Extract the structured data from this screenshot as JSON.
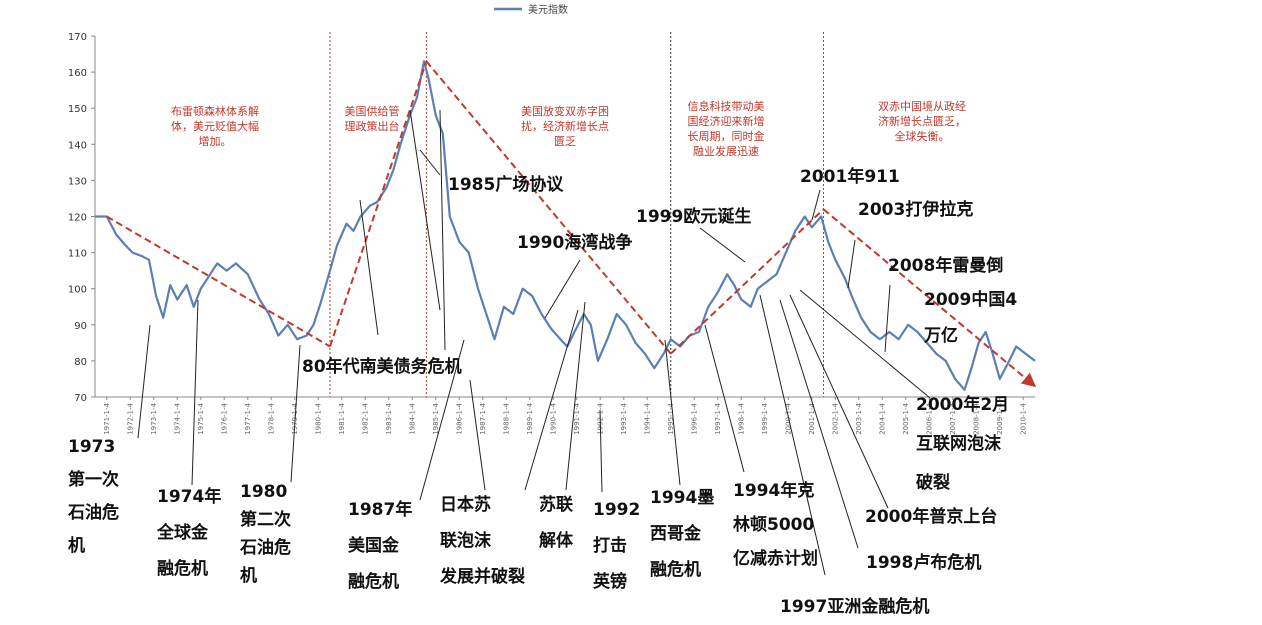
{
  "chart_data": {
    "type": "line",
    "legend": "美元指数",
    "legend_position": "top",
    "ylim": [
      70,
      170
    ],
    "yticks": [
      70,
      80,
      90,
      100,
      110,
      120,
      130,
      140,
      150,
      160,
      170
    ],
    "xlim": [
      1971,
      2011
    ],
    "xticks": [
      "1971-1-4",
      "1972-1-4",
      "1973-1-4",
      "1974-1-4",
      "1975-1-4",
      "1976-1-4",
      "1977-1-4",
      "1978-1-4",
      "1979-1-4",
      "1980-1-4",
      "1981-1-4",
      "1982-1-4",
      "1983-1-4",
      "1984-1-4",
      "1985-1-4",
      "1986-1-4",
      "1987-1-4",
      "1988-1-4",
      "1989-1-4",
      "1990-1-4",
      "1991-1-4",
      "1992-1-4",
      "1993-1-4",
      "1994-1-4",
      "1995-1-4",
      "1996-1-4",
      "1997-1-4",
      "1998-1-4",
      "1999-1-4",
      "2000-1-4",
      "2001-1-4",
      "2002-1-4",
      "2003-1-4",
      "2004-1-4",
      "2005-1-4",
      "2006-1-4",
      "2007-1-4",
      "2008-1-4",
      "2009-1-4",
      "2010-1-4"
    ],
    "x": [
      1971.0,
      1971.5,
      1971.9,
      1972.3,
      1972.6,
      1973.0,
      1973.3,
      1973.6,
      1973.9,
      1974.2,
      1974.5,
      1974.9,
      1975.2,
      1975.5,
      1975.9,
      1976.2,
      1976.6,
      1977.0,
      1977.5,
      1978.0,
      1978.4,
      1978.8,
      1979.2,
      1979.6,
      1980.0,
      1980.3,
      1980.6,
      1981.0,
      1981.3,
      1981.7,
      1982.0,
      1982.3,
      1982.7,
      1983.0,
      1983.4,
      1983.7,
      1984.0,
      1984.4,
      1984.7,
      1985.0,
      1985.2,
      1985.5,
      1985.8,
      1986.1,
      1986.5,
      1986.9,
      1987.3,
      1987.7,
      1988.0,
      1988.4,
      1988.8,
      1989.2,
      1989.6,
      1990.0,
      1990.4,
      1990.8,
      1991.1,
      1991.4,
      1991.8,
      1992.1,
      1992.4,
      1992.8,
      1993.2,
      1993.6,
      1994.0,
      1994.4,
      1994.8,
      1995.2,
      1995.5,
      1995.9,
      1996.3,
      1996.7,
      1997.1,
      1997.5,
      1997.9,
      1998.2,
      1998.5,
      1998.9,
      1999.2,
      1999.6,
      2000.0,
      2000.4,
      2000.8,
      2001.2,
      2001.5,
      2001.9,
      2002.2,
      2002.5,
      2002.9,
      2003.2,
      2003.6,
      2004.0,
      2004.4,
      2004.8,
      2005.2,
      2005.6,
      2006.0,
      2006.4,
      2006.8,
      2007.2,
      2007.6,
      2008.0,
      2008.3,
      2008.6,
      2008.9,
      2009.2,
      2009.5,
      2009.9,
      2010.2,
      2010.6,
      2011.0
    ],
    "values": [
      120,
      120,
      115,
      112,
      110,
      109,
      108,
      98,
      92,
      101,
      97,
      101,
      95,
      100,
      104,
      107,
      105,
      107,
      104,
      97,
      93,
      87,
      90,
      86,
      87,
      90,
      96,
      105,
      112,
      118,
      116,
      120,
      123,
      124,
      128,
      133,
      140,
      148,
      153,
      163,
      158,
      148,
      143,
      120,
      113,
      110,
      100,
      92,
      86,
      95,
      93,
      100,
      98,
      93,
      89,
      86,
      84,
      88,
      93,
      90,
      80,
      86,
      93,
      90,
      85,
      82,
      78,
      82,
      86,
      84,
      87,
      88,
      95,
      99,
      104,
      101,
      97,
      95,
      100,
      102,
      104,
      110,
      116,
      120,
      117,
      120,
      113,
      108,
      103,
      98,
      92,
      88,
      86,
      88,
      86,
      90,
      88,
      85,
      82,
      80,
      75,
      72,
      78,
      85,
      88,
      82,
      75,
      80,
      84,
      82,
      80
    ],
    "trend_lines": [
      {
        "x": [
          1971.5,
          1981.0
        ],
        "y": [
          120,
          84
        ]
      },
      {
        "x": [
          1981.0,
          1985.1
        ],
        "y": [
          84,
          163
        ]
      },
      {
        "x": [
          1985.1,
          1995.5
        ],
        "y": [
          163,
          82
        ]
      },
      {
        "x": [
          1995.5,
          2002.0
        ],
        "y": [
          82,
          122
        ]
      },
      {
        "x": [
          2002.0,
          2011.0
        ],
        "y": [
          122,
          73
        ]
      }
    ],
    "phase_dividers": [
      1981.0,
      1985.1,
      1995.5,
      2002.0
    ],
    "phases": [
      {
        "lines": [
          "布雷顿森林体系解",
          "体，美元贬值大幅",
          "增加。"
        ]
      },
      {
        "lines": [
          "美国供给管",
          "理政策出台"
        ]
      },
      {
        "lines": [
          "美国放变双赤字困",
          "扰，经济新增长点",
          "匮乏"
        ]
      },
      {
        "lines": [
          "信息科技带动美",
          "国经济迎来新增",
          "长周期，同时金",
          "融业发展迅速"
        ]
      },
      {
        "lines": [
          "双赤中国境从政经",
          "济新增长点匮乏，",
          "全球失衡。"
        ]
      }
    ],
    "annotations": [
      {
        "lines": [
          "1985广场协议"
        ]
      },
      {
        "lines": [
          "1990海湾战争"
        ]
      },
      {
        "lines": [
          "1999欧元诞生"
        ]
      },
      {
        "lines": [
          "2001年911"
        ]
      },
      {
        "lines": [
          "2003打伊拉克"
        ]
      },
      {
        "lines": [
          "2008年雷曼倒"
        ]
      },
      {
        "lines": [
          "2009中国4",
          "万亿"
        ]
      },
      {
        "lines": [
          "80年代南美债务危机"
        ]
      },
      {
        "lines": [
          "1973",
          "第一次",
          "石油危",
          "机"
        ]
      },
      {
        "lines": [
          "1974年",
          "全球金",
          "融危机"
        ]
      },
      {
        "lines": [
          "1980",
          "第二次",
          "石油危",
          "机"
        ]
      },
      {
        "lines": [
          "1987年",
          "美国金",
          "融危机"
        ]
      },
      {
        "lines": [
          "日本苏",
          "联泡沫",
          "发展并破裂"
        ]
      },
      {
        "lines": [
          "苏联",
          "解体"
        ]
      },
      {
        "lines": [
          "1992",
          "打击",
          "英镑"
        ]
      },
      {
        "lines": [
          "1994墨",
          "西哥金",
          "融危机"
        ]
      },
      {
        "lines": [
          "1994年克",
          "林顿5000",
          "亿减赤计划"
        ]
      },
      {
        "lines": [
          "1997亚洲金融危机"
        ]
      },
      {
        "lines": [
          "1998卢布危机"
        ]
      },
      {
        "lines": [
          "2000年普京上台"
        ]
      },
      {
        "lines": [
          "2000年2月",
          "互联网泡沫",
          "破裂"
        ]
      }
    ]
  }
}
